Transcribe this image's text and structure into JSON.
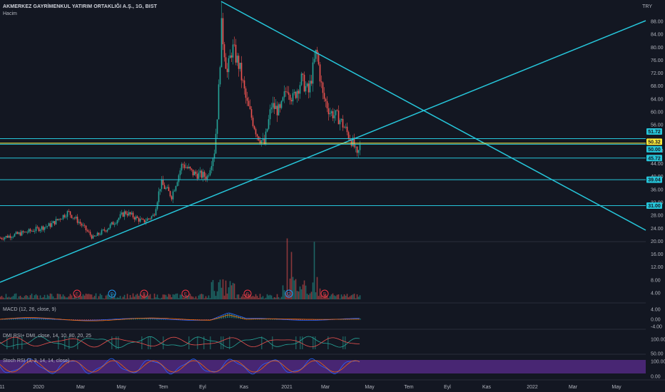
{
  "header": {
    "symbol_title": "AKMERKEZ GAYRİMENKUL YATIRIM ORTAKLIĞI A.Ş., 1G, BIST",
    "volume_label": "Hacim",
    "currency": "TRY"
  },
  "indicators": {
    "macd_label": "MACD (12, 26, close, 9)",
    "dmi_label": "DMI RSI+ DMI, close, 14, 10, 80, 20, 25",
    "stoch_label": "Stoch RSI (3, 3, 14, 14, close)"
  },
  "price_axis": [
    "88.00",
    "84.00",
    "80.00",
    "76.00",
    "72.00",
    "68.00",
    "64.00",
    "60.00",
    "56.00",
    "48.00",
    "44.00",
    "40.00",
    "36.00",
    "32.00",
    "28.00",
    "24.00",
    "20.00",
    "16.00",
    "12.00",
    "8.00",
    "4.00"
  ],
  "pane_axes": {
    "macd": [
      "4.00",
      "0.00",
      "-4.00"
    ],
    "dmi": [
      "100.00",
      "50.00"
    ],
    "stoch": [
      "100.00",
      "0.00"
    ]
  },
  "time_axis": [
    "11",
    "2020",
    "Mar",
    "May",
    "Tem",
    "Eyl",
    "Kas",
    "2021",
    "Mar",
    "May",
    "Tem",
    "Eyl",
    "Kas",
    "2022",
    "Mar",
    "May"
  ],
  "price_tags": [
    {
      "text": "51.72",
      "color": "#26c6da",
      "price": 51.72
    },
    {
      "text": "50.32",
      "color": "#ffeb3b",
      "price": 50.32
    },
    {
      "text": "50.00",
      "color": "#26c6da",
      "price": 50.0
    },
    {
      "text": "45.72",
      "color": "#26c6da",
      "price": 45.72
    },
    {
      "text": "39.04",
      "color": "#26c6da",
      "price": 39.04
    },
    {
      "text": "31.00",
      "color": "#26c6da",
      "price": 31.0
    }
  ],
  "event_markers": [
    {
      "letter": "E",
      "color": "#f23645"
    },
    {
      "letter": "D",
      "color": "#2196f3"
    },
    {
      "letter": "E",
      "color": "#f23645"
    },
    {
      "letter": "E",
      "color": "#f23645"
    },
    {
      "letter": "E",
      "color": "#f23645"
    },
    {
      "letter": "D",
      "color": "#2196f3"
    },
    {
      "letter": "E",
      "color": "#f23645"
    }
  ],
  "colors": {
    "background": "#131722",
    "up": "#26a69a",
    "down": "#ef5350",
    "trendline": "#26c6da",
    "yellow_line": "#ffeb3b",
    "stoch_band": "#5b2c8f"
  },
  "chart_data": {
    "type": "candlestick",
    "price_range": [
      0,
      90
    ],
    "key_prices": {
      "start": 21,
      "mid_2020_high": 30,
      "sep_2020_peak": 94,
      "nov_2020_low": 50,
      "mar_2021_high": 79,
      "current": 50
    }
  }
}
